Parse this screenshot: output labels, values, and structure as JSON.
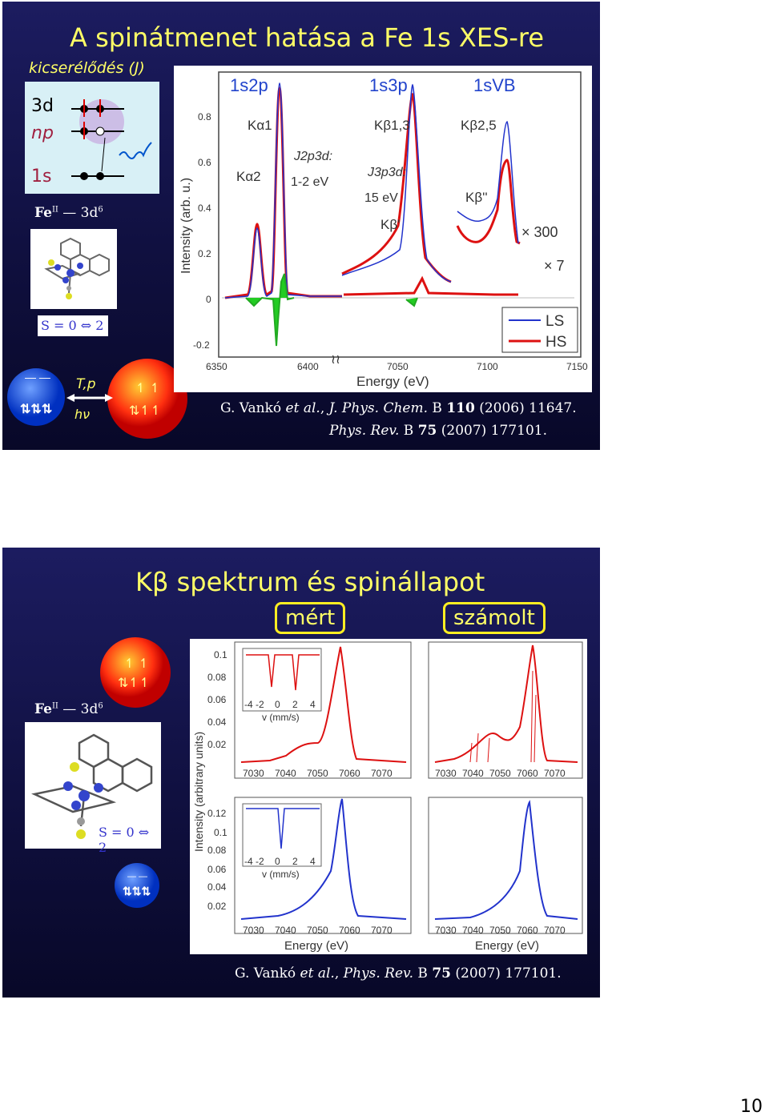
{
  "slide1": {
    "title": "A spinátmenet hatása a Fe 1s XES-re",
    "exchange_label": "kicserélődés (J)",
    "orbitals": {
      "d": "3d",
      "p": "np",
      "s": "1s"
    },
    "fe_state": "Fe",
    "fe_superscript": "II",
    "fe_config": "— 3d",
    "fe_config_superscript": "6",
    "spin_label": "S = 0 ⇔ 2",
    "transition_label_1": "T,p",
    "transition_label_2": "hν",
    "spectrum": {
      "region_labels": [
        "1s2p",
        "1s3p",
        "1sVB"
      ],
      "peak_labels": [
        "Kα1",
        "Kα2",
        "Kβ1,3",
        "Kβ'",
        "Kβ2,5",
        "Kβ''"
      ],
      "j2p3d_label": "J2p3d:",
      "j2p3d_value": "1-2 eV",
      "j3p3d_label": "J3p3d:",
      "j3p3d_value": "15 eV",
      "mult_300": "× 300",
      "mult_7": "× 7",
      "ylabel": "Intensity (arb. u.)",
      "xlabel": "Energy (eV)",
      "yticks": [
        "0.8",
        "0.6",
        "0.4",
        "0.2",
        "0",
        "-0.2"
      ],
      "xticks": [
        "6350",
        "6400",
        "7050",
        "7100",
        "7150"
      ],
      "legend": [
        {
          "label": "LS",
          "color": "#2233cc"
        },
        {
          "label": "HS",
          "color": "#dd1111"
        }
      ]
    },
    "citation_line1": {
      "pre": "G. Vankó ",
      "etal": "et al.",
      "mid": ", ",
      "journal": "J. Phys. Chem.",
      "mid2": " B ",
      "vol": "110",
      "post": " (2006) 11647."
    },
    "citation_line2": {
      "journal": "Phys. Rev.",
      "mid": " B ",
      "vol": "75",
      "post": " (2007) 177101."
    }
  },
  "slide2": {
    "title": "Kβ spektrum és spinállapot",
    "tag_measured": "mért",
    "tag_calculated": "számolt",
    "fe_state": "Fe",
    "fe_superscript": "II",
    "fe_config": "— 3d",
    "fe_config_superscript": "6",
    "spin_label": "S = 0 ⇔ 2",
    "ylabel": "Intensity (arbitrary units)",
    "xlabel": "Energy (eV)",
    "yticks_top": [
      "0.1",
      "0.08",
      "0.06",
      "0.04",
      "0.02"
    ],
    "yticks_bottom": [
      "0.12",
      "0.1",
      "0.08",
      "0.06",
      "0.04",
      "0.02"
    ],
    "xticks": [
      "7030",
      "7040",
      "7050",
      "7060",
      "7070"
    ],
    "inset_xticks": [
      "-4",
      "-2",
      "0",
      "2",
      "4"
    ],
    "inset_xlabel": "v (mm/s)",
    "citation": {
      "pre": "G. Vankó ",
      "etal": "et al.",
      "mid": ", ",
      "journal": "Phys. Rev.",
      "mid2": " B ",
      "vol": "75",
      "post": " (2007) 177101."
    }
  },
  "page_number": "10",
  "colors": {
    "title": "#ffff66",
    "ls": "#2233cc",
    "hs": "#dd1111",
    "diff": "#22aa22"
  }
}
